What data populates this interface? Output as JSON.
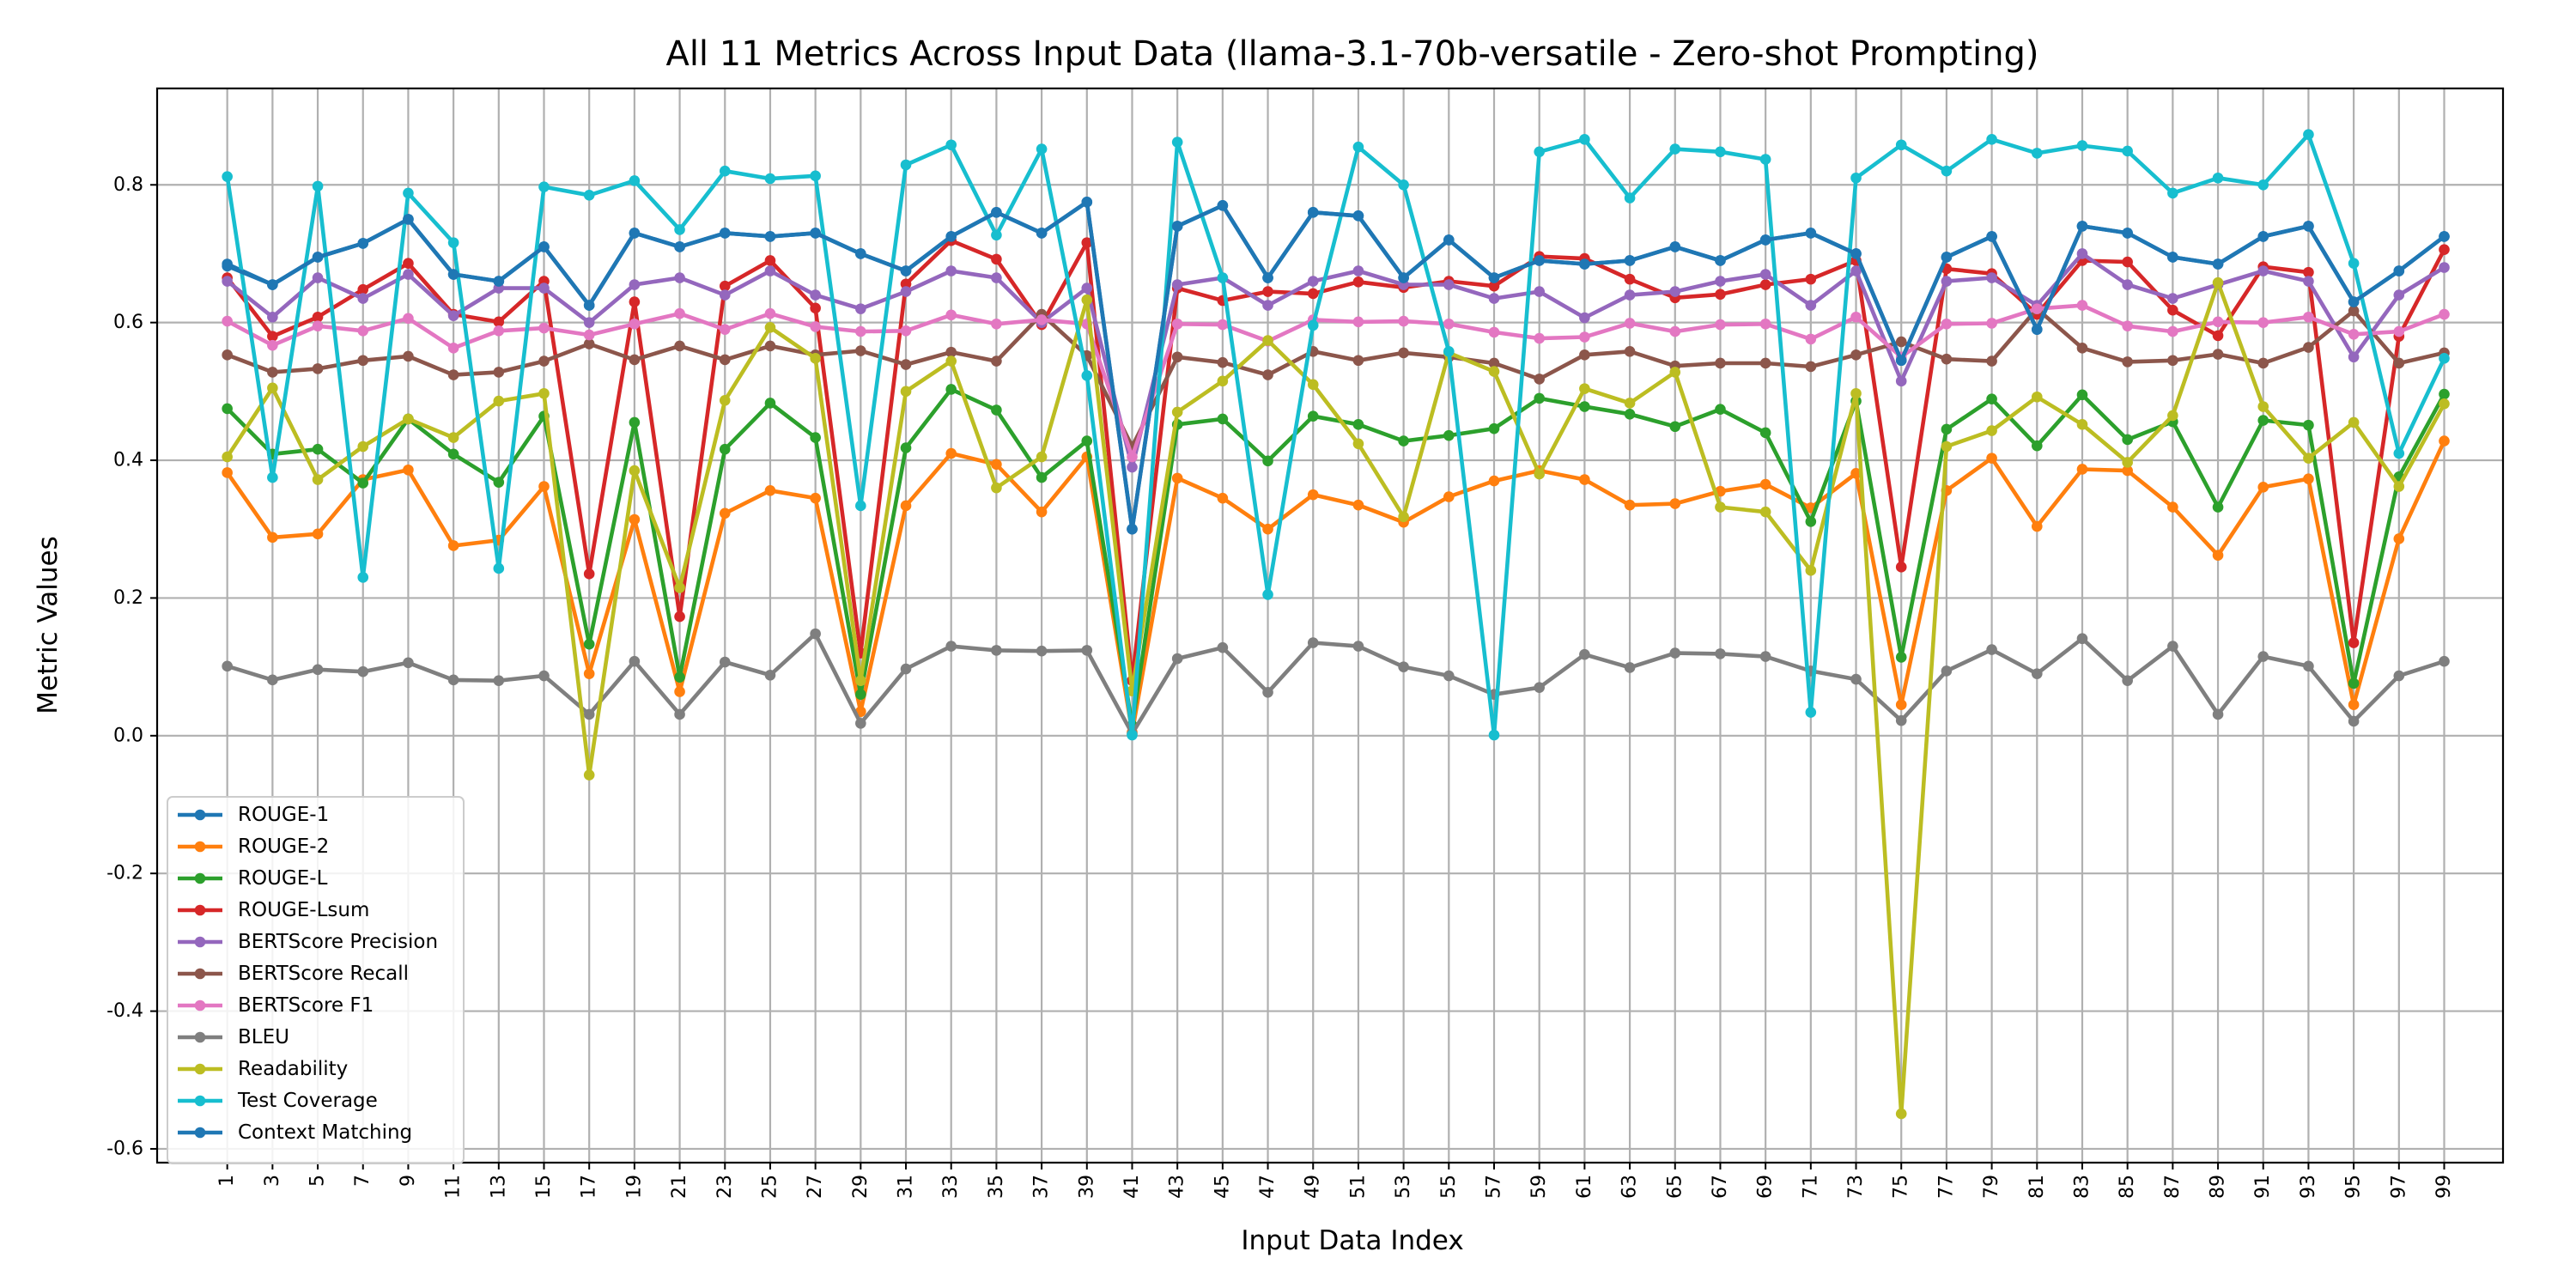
{
  "chart_data": {
    "type": "line",
    "title": "All 11 Metrics Across Input Data (llama-3.1-70b-versatile - Zero-shot Prompting)",
    "xlabel": "Input Data Index",
    "ylabel": "Metric Values",
    "ylim": [
      -0.62,
      0.94
    ],
    "yticks": [
      "-0.6",
      "-0.4",
      "-0.2",
      "0.0",
      "0.2",
      "0.4",
      "0.6",
      "0.8"
    ],
    "grid": true,
    "legend_position": "lower-left",
    "x": [
      1,
      3,
      5,
      7,
      9,
      11,
      13,
      15,
      17,
      19,
      21,
      23,
      25,
      27,
      29,
      31,
      33,
      35,
      37,
      39,
      41,
      43,
      45,
      47,
      49,
      51,
      53,
      55,
      57,
      59,
      61,
      63,
      65,
      67,
      69,
      71,
      73,
      75,
      77,
      79,
      81,
      83,
      85,
      87,
      89,
      91,
      93,
      95,
      97,
      99
    ],
    "xticks": [
      "1",
      "3",
      "5",
      "7",
      "9",
      "11",
      "13",
      "15",
      "17",
      "19",
      "21",
      "23",
      "25",
      "27",
      "29",
      "31",
      "33",
      "35",
      "37",
      "39",
      "41",
      "43",
      "45",
      "47",
      "49",
      "51",
      "53",
      "55",
      "57",
      "59",
      "61",
      "63",
      "65",
      "67",
      "69",
      "71",
      "73",
      "75",
      "77",
      "79",
      "81",
      "83",
      "85",
      "87",
      "89",
      "91",
      "93",
      "95",
      "97",
      "99"
    ],
    "series": [
      {
        "name": "ROUGE-1",
        "color": "#1f77b4",
        "values": [
          0.685,
          0.655,
          0.695,
          0.715,
          0.75,
          0.67,
          0.66,
          0.71,
          0.625,
          0.73,
          0.71,
          0.73,
          0.725,
          0.73,
          0.7,
          0.675,
          0.725,
          0.76,
          0.73,
          0.775,
          0.3,
          0.74,
          0.77,
          0.665,
          0.76,
          0.755,
          0.665,
          0.72,
          0.665,
          0.69,
          0.685,
          0.69,
          0.71,
          0.69,
          0.72,
          0.73,
          0.7,
          0.545,
          0.695,
          0.725,
          0.59,
          0.74,
          0.73,
          0.695,
          0.685,
          0.725,
          0.74,
          0.63,
          0.675,
          0.725
        ]
      },
      {
        "name": "ROUGE-2",
        "color": "#ff7f0e",
        "values": [
          0.382,
          0.288,
          0.293,
          0.372,
          0.386,
          0.276,
          0.284,
          0.362,
          0.09,
          0.314,
          0.064,
          0.323,
          0.356,
          0.345,
          0.035,
          0.334,
          0.41,
          0.394,
          0.325,
          0.405,
          0.005,
          0.374,
          0.345,
          0.3,
          0.35,
          0.335,
          0.31,
          0.347,
          0.37,
          0.385,
          0.372,
          0.335,
          0.337,
          0.355,
          0.365,
          0.331,
          0.381,
          0.045,
          0.356,
          0.403,
          0.304,
          0.387,
          0.385,
          0.332,
          0.262,
          0.361,
          0.373,
          0.045,
          0.286,
          0.428
        ]
      },
      {
        "name": "ROUGE-L",
        "color": "#2ca02c",
        "values": [
          0.475,
          0.409,
          0.416,
          0.367,
          0.46,
          0.409,
          0.368,
          0.464,
          0.133,
          0.455,
          0.085,
          0.416,
          0.483,
          0.433,
          0.06,
          0.418,
          0.503,
          0.473,
          0.375,
          0.428,
          0.015,
          0.452,
          0.46,
          0.399,
          0.464,
          0.452,
          0.428,
          0.436,
          0.446,
          0.49,
          0.478,
          0.467,
          0.449,
          0.474,
          0.44,
          0.311,
          0.486,
          0.114,
          0.445,
          0.489,
          0.421,
          0.495,
          0.43,
          0.456,
          0.332,
          0.458,
          0.451,
          0.076,
          0.376,
          0.496
        ]
      },
      {
        "name": "ROUGE-Lsum",
        "color": "#d62728",
        "values": [
          0.665,
          0.58,
          0.608,
          0.648,
          0.686,
          0.612,
          0.601,
          0.66,
          0.235,
          0.63,
          0.173,
          0.653,
          0.69,
          0.621,
          0.12,
          0.656,
          0.719,
          0.692,
          0.597,
          0.716,
          0.08,
          0.65,
          0.632,
          0.645,
          0.642,
          0.659,
          0.651,
          0.66,
          0.653,
          0.696,
          0.693,
          0.663,
          0.636,
          0.641,
          0.655,
          0.663,
          0.69,
          0.245,
          0.678,
          0.671,
          0.612,
          0.69,
          0.688,
          0.618,
          0.581,
          0.681,
          0.673,
          0.135,
          0.58,
          0.706
        ]
      },
      {
        "name": "BERTScore Precision",
        "color": "#9467bd",
        "values": [
          0.66,
          0.608,
          0.665,
          0.635,
          0.67,
          0.61,
          0.65,
          0.65,
          0.6,
          0.655,
          0.665,
          0.64,
          0.675,
          0.64,
          0.62,
          0.645,
          0.675,
          0.665,
          0.6,
          0.65,
          0.39,
          0.655,
          0.665,
          0.625,
          0.66,
          0.675,
          0.655,
          0.655,
          0.635,
          0.645,
          0.607,
          0.64,
          0.645,
          0.66,
          0.67,
          0.625,
          0.675,
          0.515,
          0.66,
          0.665,
          0.625,
          0.7,
          0.655,
          0.635,
          0.655,
          0.675,
          0.66,
          0.55,
          0.64,
          0.68
        ]
      },
      {
        "name": "BERTScore Recall",
        "color": "#8c564b",
        "values": [
          0.553,
          0.528,
          0.533,
          0.545,
          0.551,
          0.524,
          0.528,
          0.544,
          0.569,
          0.546,
          0.566,
          0.546,
          0.566,
          0.553,
          0.559,
          0.539,
          0.557,
          0.544,
          0.612,
          0.552,
          0.42,
          0.55,
          0.542,
          0.524,
          0.558,
          0.545,
          0.556,
          0.55,
          0.541,
          0.518,
          0.553,
          0.558,
          0.537,
          0.541,
          0.541,
          0.536,
          0.553,
          0.572,
          0.547,
          0.544,
          0.62,
          0.563,
          0.543,
          0.545,
          0.554,
          0.541,
          0.564,
          0.617,
          0.541,
          0.556
        ]
      },
      {
        "name": "BERTScore F1",
        "color": "#e377c2",
        "values": [
          0.602,
          0.567,
          0.595,
          0.588,
          0.606,
          0.563,
          0.588,
          0.592,
          0.582,
          0.598,
          0.613,
          0.59,
          0.613,
          0.594,
          0.587,
          0.588,
          0.611,
          0.598,
          0.604,
          0.598,
          0.405,
          0.598,
          0.597,
          0.573,
          0.604,
          0.601,
          0.602,
          0.598,
          0.586,
          0.577,
          0.579,
          0.599,
          0.587,
          0.597,
          0.598,
          0.576,
          0.608,
          0.55,
          0.598,
          0.599,
          0.62,
          0.625,
          0.595,
          0.587,
          0.601,
          0.6,
          0.608,
          0.583,
          0.587,
          0.612
        ]
      },
      {
        "name": "BLEU",
        "color": "#7f7f7f",
        "values": [
          0.101,
          0.081,
          0.096,
          0.093,
          0.106,
          0.081,
          0.08,
          0.087,
          0.031,
          0.108,
          0.031,
          0.107,
          0.088,
          0.148,
          0.018,
          0.097,
          0.13,
          0.124,
          0.123,
          0.124,
          0.003,
          0.112,
          0.128,
          0.063,
          0.135,
          0.13,
          0.1,
          0.087,
          0.06,
          0.07,
          0.118,
          0.099,
          0.12,
          0.119,
          0.115,
          0.094,
          0.082,
          0.022,
          0.094,
          0.125,
          0.09,
          0.141,
          0.08,
          0.13,
          0.031,
          0.115,
          0.101,
          0.021,
          0.087,
          0.108
        ]
      },
      {
        "name": "Readability",
        "color": "#bcbd22",
        "values": [
          0.405,
          0.505,
          0.372,
          0.42,
          0.46,
          0.433,
          0.486,
          0.497,
          -0.057,
          0.385,
          0.215,
          0.487,
          0.593,
          0.548,
          0.08,
          0.5,
          0.544,
          0.36,
          0.405,
          0.633,
          0.065,
          0.47,
          0.515,
          0.574,
          0.51,
          0.424,
          0.318,
          0.556,
          0.529,
          0.38,
          0.504,
          0.483,
          0.528,
          0.332,
          0.325,
          0.24,
          0.497,
          -0.549,
          0.42,
          0.443,
          0.492,
          0.452,
          0.397,
          0.465,
          0.658,
          0.478,
          0.403,
          0.455,
          0.362,
          0.482
        ]
      },
      {
        "name": "Test Coverage",
        "color": "#17becf",
        "values": [
          0.812,
          0.375,
          0.798,
          0.23,
          0.788,
          0.716,
          0.243,
          0.797,
          0.785,
          0.806,
          0.735,
          0.82,
          0.809,
          0.813,
          0.334,
          0.829,
          0.858,
          0.727,
          0.852,
          0.523,
          0.001,
          0.862,
          0.665,
          0.205,
          0.596,
          0.855,
          0.8,
          0.558,
          0.001,
          0.848,
          0.866,
          0.781,
          0.852,
          0.848,
          0.837,
          0.034,
          0.81,
          0.858,
          0.82,
          0.866,
          0.846,
          0.857,
          0.849,
          0.788,
          0.81,
          0.8,
          0.873,
          0.686,
          0.41,
          0.548
        ]
      },
      {
        "name": "Context Matching",
        "color": "#1f77b4",
        "values": [
          0.682,
          0.655,
          0.695,
          0.715,
          0.75,
          0.67,
          0.66,
          0.71,
          0.625,
          0.73,
          0.71,
          0.73,
          0.725,
          0.73,
          0.7,
          0.675,
          0.725,
          0.76,
          0.73,
          0.775,
          0.3,
          0.74,
          0.77,
          0.665,
          0.76,
          0.755,
          0.665,
          0.72,
          0.665,
          0.69,
          0.685,
          0.69,
          0.71,
          0.69,
          0.72,
          0.73,
          0.7,
          0.545,
          0.695,
          0.725,
          0.59,
          0.74,
          0.73,
          0.695,
          0.685,
          0.725,
          0.74,
          0.63,
          0.675,
          0.725
        ]
      }
    ]
  }
}
